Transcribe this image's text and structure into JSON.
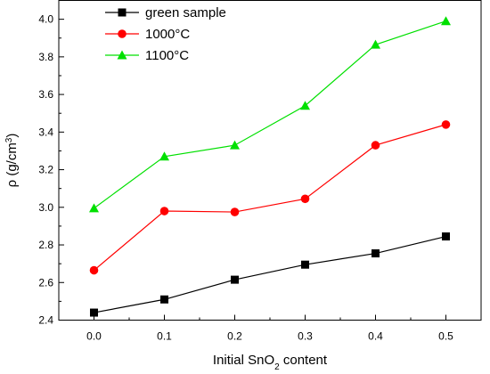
{
  "chart_data": {
    "type": "line",
    "x": [
      0.0,
      0.1,
      0.2,
      0.3,
      0.4,
      0.5
    ],
    "x_tick_labels": [
      "0.0",
      "0.1",
      "0.2",
      "0.3",
      "0.4",
      "0.5"
    ],
    "xlim": [
      -0.05,
      0.55
    ],
    "ylim": [
      2.4,
      4.1
    ],
    "y_ticks": [
      2.4,
      2.6,
      2.8,
      3.0,
      3.2,
      3.4,
      3.6,
      3.8,
      4.0
    ],
    "y_tick_labels": [
      "2.4",
      "2.6",
      "2.8",
      "3.0",
      "3.2",
      "3.4",
      "3.6",
      "3.8",
      "4.0"
    ],
    "xlabel": {
      "main": "Initial SnO",
      "sub": "2",
      "tail": " content"
    },
    "ylabel": {
      "main": "ρ (g/cm",
      "sup": "3",
      "tail": ")"
    },
    "grid": false,
    "legend_position": "top-left",
    "series": [
      {
        "name": "green sample",
        "values": [
          2.44,
          2.51,
          2.615,
          2.695,
          2.755,
          2.845
        ],
        "color": "#000000",
        "marker": "square"
      },
      {
        "name": "1000°C",
        "values": [
          2.665,
          2.98,
          2.975,
          3.045,
          3.33,
          3.44
        ],
        "color": "#ff0000",
        "marker": "circle"
      },
      {
        "name": "1100°C",
        "values": [
          2.995,
          3.27,
          3.33,
          3.54,
          3.865,
          3.99
        ],
        "color": "#00e000",
        "marker": "triangle"
      }
    ]
  }
}
